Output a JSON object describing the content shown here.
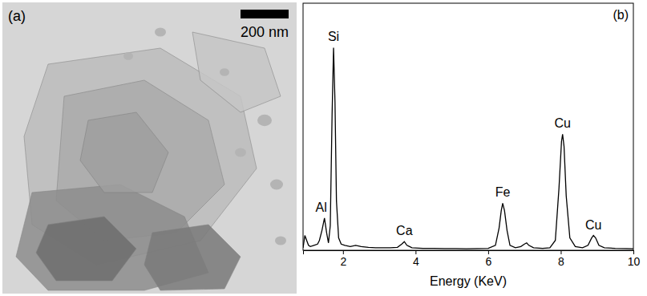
{
  "image_panel": {
    "label": "(a)",
    "scale_bar": "200 nm"
  },
  "chart_data": {
    "type": "line",
    "panel_label": "(b)",
    "x_label": "Energy (KeV)",
    "xlim": [
      0.9,
      10
    ],
    "xticks": [
      2,
      4,
      6,
      8,
      10
    ],
    "ylim": [
      0,
      100
    ],
    "tick_labels": "x",
    "grid": false,
    "color": "#000000",
    "x": [
      0.9,
      0.95,
      1.0,
      1.05,
      1.1,
      1.2,
      1.3,
      1.35,
      1.42,
      1.49,
      1.55,
      1.6,
      1.65,
      1.7,
      1.74,
      1.78,
      1.82,
      1.88,
      1.95,
      2.05,
      2.2,
      2.35,
      2.5,
      2.7,
      2.9,
      3.1,
      3.3,
      3.5,
      3.62,
      3.69,
      3.76,
      3.9,
      4.2,
      4.5,
      4.8,
      5.1,
      5.4,
      5.7,
      6.0,
      6.2,
      6.3,
      6.36,
      6.4,
      6.45,
      6.52,
      6.6,
      6.75,
      6.9,
      7.0,
      7.06,
      7.12,
      7.25,
      7.5,
      7.7,
      7.85,
      7.95,
      8.02,
      8.05,
      8.09,
      8.15,
      8.25,
      8.4,
      8.6,
      8.75,
      8.85,
      8.9,
      8.96,
      9.05,
      9.2,
      9.5,
      9.8,
      10.0
    ],
    "values": [
      1,
      6,
      4,
      2,
      1.5,
      2,
      2.5,
      4,
      8,
      13,
      7,
      3,
      10,
      55,
      82,
      60,
      20,
      5,
      2.5,
      2,
      1.5,
      2,
      1.5,
      1.2,
      1,
      1,
      1,
      1.2,
      2.5,
      3.5,
      2,
      1,
      0.8,
      0.8,
      0.7,
      0.7,
      0.6,
      0.7,
      0.8,
      2,
      9,
      16,
      19,
      16,
      8,
      2,
      1,
      1.5,
      2.5,
      3,
      2,
      1,
      0.8,
      1,
      4,
      25,
      44,
      47,
      42,
      22,
      5,
      1.5,
      1,
      2,
      5,
      6,
      5,
      2,
      1,
      0.8,
      0.7,
      0.6
    ],
    "annotations": [
      {
        "text": "Al",
        "x": 1.49,
        "y": 13
      },
      {
        "text": "Si",
        "x": 1.74,
        "y": 82
      },
      {
        "text": "Ca",
        "x": 3.69,
        "y": 3.5
      },
      {
        "text": "Fe",
        "x": 6.4,
        "y": 19
      },
      {
        "text": "Cu",
        "x": 8.05,
        "y": 47
      },
      {
        "text": "Cu",
        "x": 8.9,
        "y": 6
      }
    ]
  }
}
